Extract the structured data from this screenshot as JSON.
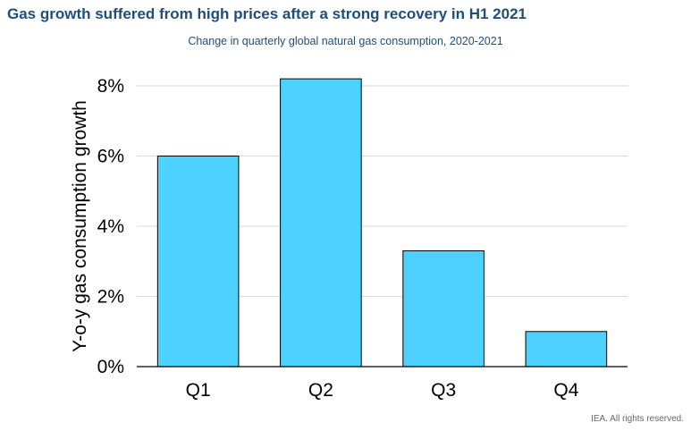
{
  "header": {
    "title": "Gas growth suffered from high prices after a strong recovery in H1 2021",
    "subtitle": "Change in quarterly global natural gas consumption, 2020-2021"
  },
  "footer": {
    "credit": "IEA. All rights reserved."
  },
  "chart_data": {
    "type": "bar",
    "categories": [
      "Q1",
      "Q2",
      "Q3",
      "Q4"
    ],
    "values": [
      6.0,
      8.2,
      3.3,
      1.0
    ],
    "title": "Gas growth suffered from high prices after a strong recovery in H1 2021",
    "subtitle": "Change in quarterly global natural gas consumption, 2020-2021",
    "xlabel": "",
    "ylabel": "Y-o-y gas consumption growth",
    "ylim": [
      0,
      8
    ],
    "yticks": [
      0,
      2,
      4,
      6,
      8
    ],
    "ytick_labels": [
      "0%",
      "2%",
      "4%",
      "6%",
      "8%"
    ],
    "grid": true,
    "bar_color": "#4dd2ff",
    "bar_edge_color": "#000000",
    "grid_color": "#d9d9d9"
  }
}
